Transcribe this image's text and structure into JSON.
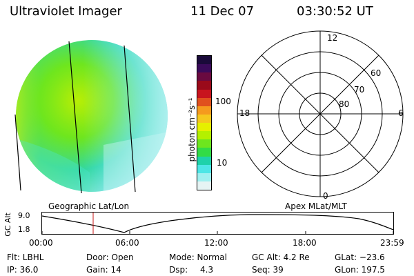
{
  "header": {
    "title": "Ultraviolet Imager",
    "date": "11 Dec 07",
    "time": "03:30:52 UT"
  },
  "colorbar": {
    "unit_label": "photon cm⁻²s⁻¹",
    "ticks": [
      "100",
      "10"
    ],
    "colors": [
      "#1a0a3a",
      "#3a0a5a",
      "#6a0a40",
      "#9a0a1a",
      "#c8141e",
      "#e0501e",
      "#f59a1e",
      "#f5c81e",
      "#e6f000",
      "#b4f000",
      "#6ee61e",
      "#32dc46",
      "#1ed2aa",
      "#4ee6e6",
      "#a0f0f0",
      "#e6f4f4"
    ]
  },
  "polar_plot": {
    "mlt_labels": [
      "12",
      "18",
      "6",
      "0"
    ],
    "lat_labels": [
      "60",
      "70",
      "80"
    ]
  },
  "timeline": {
    "left_label": "Geographic Lat/Lon",
    "right_label": "Apex MLat/MLT",
    "y_axis_label": "GC Alt",
    "y_ticks": [
      "9.0",
      "1.8"
    ],
    "x_ticks": [
      "00:00",
      "06:00",
      "12:00",
      "18:00",
      "23:59"
    ],
    "marker_time": "03:30:52"
  },
  "info": {
    "flt": "Flt: LBHL",
    "door": "Door: Open",
    "mode": "Mode: Normal",
    "gc_alt": "GC Alt: 4.2 Re",
    "glat": "GLat: −23.6",
    "ip": "IP: 36.0",
    "gain": "Gain: 14",
    "dsp_label": "Dsp:",
    "dsp_value": "4.3",
    "seq": "Seq: 39",
    "glon": "GLon: 197.5"
  }
}
